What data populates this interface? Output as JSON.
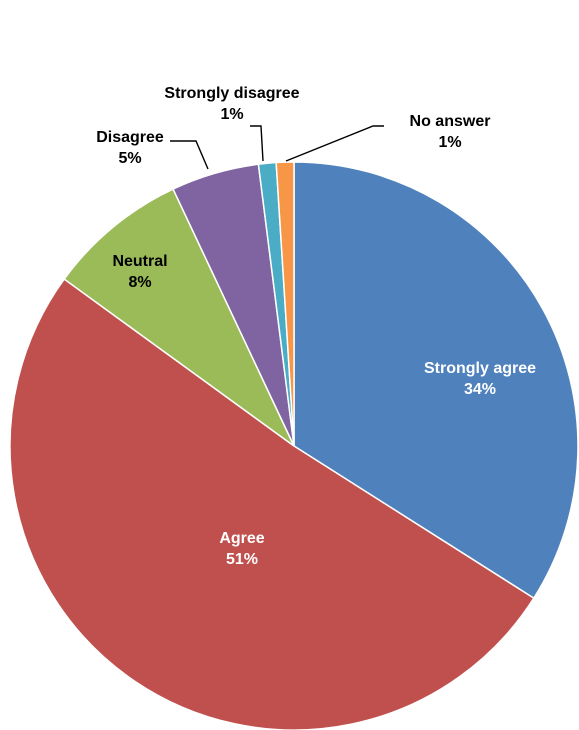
{
  "chart_data": {
    "type": "pie",
    "title": "",
    "legend": "none",
    "slices": [
      {
        "label": "Strongly agree",
        "value": 34,
        "value_label": "34%",
        "color": "#4F81BD",
        "label_position": "inside",
        "label_color": "#FFFFFF"
      },
      {
        "label": "Agree",
        "value": 51,
        "value_label": "51%",
        "color": "#C0504D",
        "label_position": "inside",
        "label_color": "#FFFFFF"
      },
      {
        "label": "Neutral",
        "value": 8,
        "value_label": "8%",
        "color": "#9BBB59",
        "label_position": "inside",
        "label_color": "#000000"
      },
      {
        "label": "Disagree",
        "value": 5,
        "value_label": "5%",
        "color": "#8064A2",
        "label_position": "outside",
        "label_color": "#000000"
      },
      {
        "label": "Strongly disagree",
        "value": 1,
        "value_label": "1%",
        "color": "#4BACC6",
        "label_position": "outside",
        "label_color": "#000000"
      },
      {
        "label": "No answer",
        "value": 1,
        "value_label": "1%",
        "color": "#F79646",
        "label_position": "outside",
        "label_color": "#000000"
      }
    ]
  }
}
